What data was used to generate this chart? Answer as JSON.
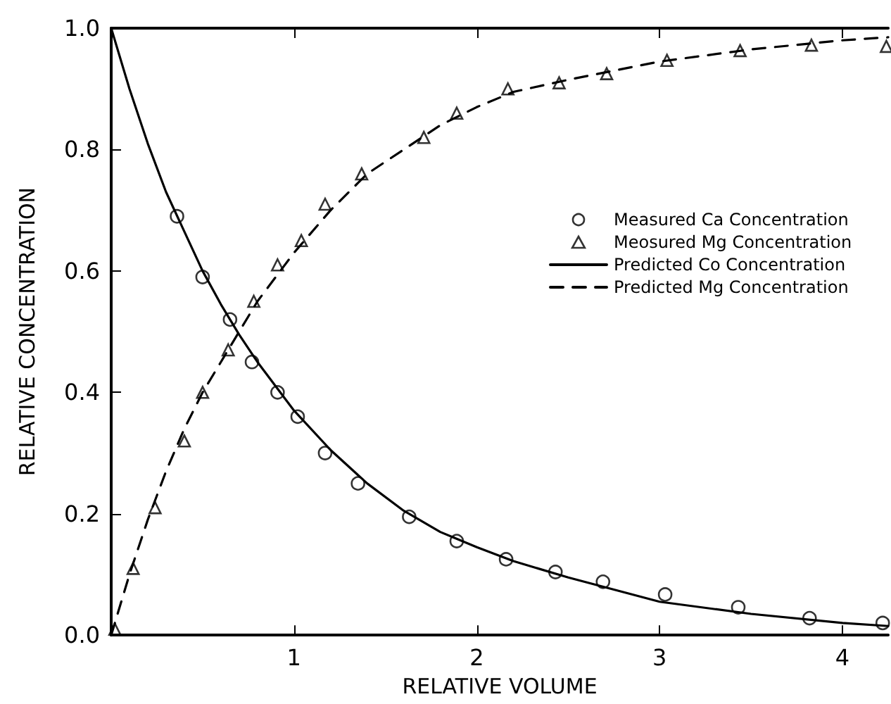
{
  "chart_data": {
    "type": "scatter",
    "xlabel": "RELATIVE VOLUME",
    "ylabel": "RELATIVE CONCENTRATION",
    "xlim": [
      0,
      4.25
    ],
    "ylim": [
      0,
      1
    ],
    "xticks": [
      1,
      2,
      3,
      4
    ],
    "yticks": [
      {
        "value": 0,
        "label": "0.0"
      },
      {
        "value": 0.2,
        "label": "0.2"
      },
      {
        "value": 0.4,
        "label": "0.4"
      },
      {
        "value": 0.6,
        "label": "0.6"
      },
      {
        "value": 0.8,
        "label": "0.8"
      },
      {
        "value": 1,
        "label": "1.0"
      }
    ],
    "grid": false,
    "legend": "right",
    "series": [
      {
        "name": "Measured Ca Concentration",
        "marker": "circle",
        "color": "#000000",
        "x": [
          0.36,
          0.5,
          0.65,
          0.77,
          0.91,
          1.02,
          1.17,
          1.35,
          1.63,
          1.89,
          2.16,
          2.43,
          2.69,
          3.03,
          3.43,
          3.82,
          4.22
        ],
        "values": [
          0.69,
          0.59,
          0.52,
          0.45,
          0.4,
          0.36,
          0.3,
          0.25,
          0.195,
          0.155,
          0.125,
          0.104,
          0.088,
          0.067,
          0.046,
          0.028,
          0.02
        ]
      },
      {
        "name": "Meosured Mg Concentration",
        "marker": "triangle",
        "color": "#000000",
        "x": [
          0.02,
          0.12,
          0.24,
          0.4,
          0.5,
          0.64,
          0.78,
          0.91,
          1.04,
          1.17,
          1.37,
          1.71,
          1.89,
          2.17,
          2.45,
          2.71,
          3.04,
          3.44,
          3.83,
          4.24
        ],
        "values": [
          0.01,
          0.11,
          0.21,
          0.32,
          0.4,
          0.47,
          0.55,
          0.61,
          0.65,
          0.71,
          0.76,
          0.82,
          0.86,
          0.9,
          0.91,
          0.925,
          0.947,
          0.963,
          0.972,
          0.97
        ]
      },
      {
        "name": "Predicted Co Concentration",
        "type": "line",
        "marker": "none",
        "line_style": "solid",
        "color": "#000000",
        "x": [
          0,
          0.1,
          0.2,
          0.3,
          0.4,
          0.5,
          0.6,
          0.7,
          0.8,
          0.9,
          1,
          1.2,
          1.4,
          1.6,
          1.8,
          2,
          2.2,
          2.5,
          3,
          3.5,
          4,
          4.25
        ],
        "values": [
          1,
          0.9,
          0.81,
          0.73,
          0.665,
          0.6,
          0.545,
          0.495,
          0.45,
          0.41,
          0.37,
          0.305,
          0.25,
          0.205,
          0.17,
          0.145,
          0.122,
          0.095,
          0.055,
          0.035,
          0.02,
          0.015
        ]
      },
      {
        "name": "Predicted Mg Concentration",
        "type": "line",
        "marker": "none",
        "line_style": "dashed",
        "color": "#000000",
        "x": [
          0,
          0.1,
          0.2,
          0.3,
          0.4,
          0.5,
          0.6,
          0.7,
          0.8,
          1,
          1.2,
          1.4,
          1.6,
          1.8,
          2,
          2.2,
          2.5,
          3,
          3.5,
          4,
          4.25
        ],
        "values": [
          0,
          0.1,
          0.19,
          0.27,
          0.34,
          0.4,
          0.45,
          0.5,
          0.55,
          0.63,
          0.7,
          0.76,
          0.8,
          0.84,
          0.87,
          0.895,
          0.915,
          0.945,
          0.965,
          0.98,
          0.985
        ]
      }
    ]
  }
}
